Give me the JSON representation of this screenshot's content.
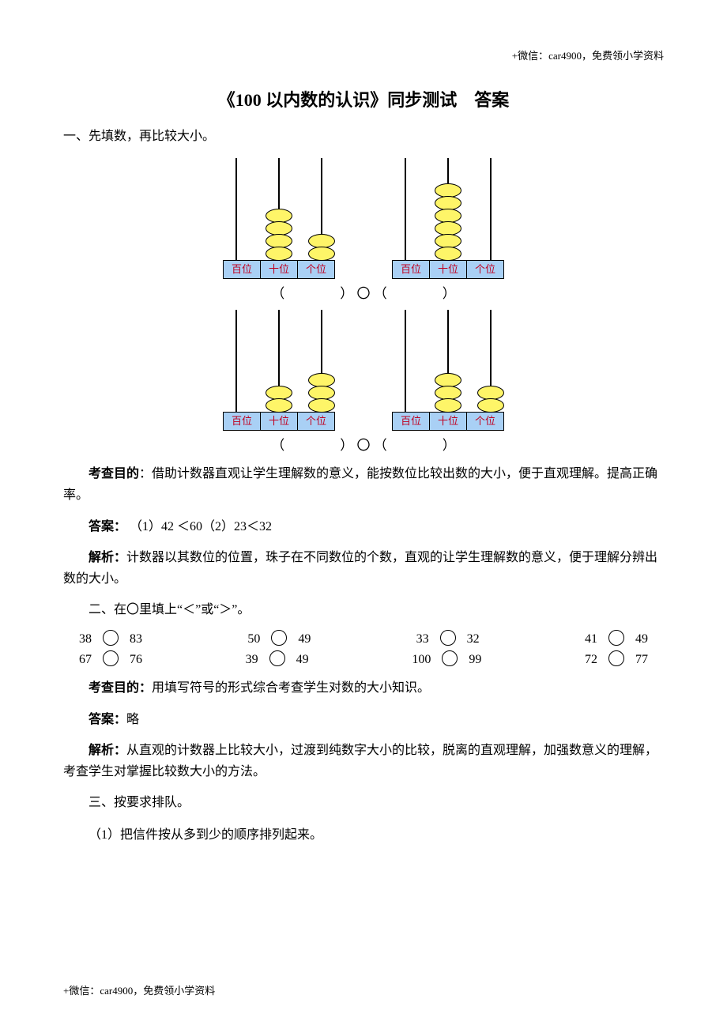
{
  "header_note": "+微信：car4900，免费领小学资料",
  "footer_note": "+微信：car4900，免费领小学资料",
  "title": "《100 以内数的认识》同步测试 答案",
  "q1": {
    "heading": "一、先填数，再比较大小。",
    "rod_labels": [
      "百位",
      "十位",
      "个位"
    ],
    "bead_fill": "#fef568",
    "bead_stroke": "#000000",
    "base_fill": "#a9d0f5",
    "label_color": "#c00020",
    "compare_line_row1": "（   ） 〇 （   ）",
    "compare_line_row2": "（   ） 〇 （   ）",
    "row1": {
      "left": {
        "beads": [
          0,
          4,
          2
        ]
      },
      "right": {
        "beads": [
          0,
          6,
          0
        ]
      }
    },
    "row2": {
      "left": {
        "beads": [
          0,
          2,
          3
        ]
      },
      "right": {
        "beads": [
          0,
          3,
          2
        ]
      }
    },
    "purpose_label": "考查目的",
    "purpose_text": "：借助计数器直观让学生理解数的意义，能按数位比较出数的大小，便于直观理解。提高正确率。",
    "answer_label": "答案：",
    "answer_text": "（1）42 ＜60（2）23＜32",
    "analysis_label": "解析：",
    "analysis_text": "计数器以其数位的位置，珠子在不同数位的个数，直观的让学生理解数的意义，便于理解分辨出数的大小。"
  },
  "q2": {
    "heading": "二、在〇里填上“＜”或“＞”。",
    "rows": [
      [
        [
          "38",
          "83"
        ],
        [
          "50",
          "49"
        ],
        [
          "33",
          "32"
        ],
        [
          "41",
          "49"
        ]
      ],
      [
        [
          "67",
          "76"
        ],
        [
          "39",
          "49"
        ],
        [
          "100",
          "99"
        ],
        [
          "72",
          "77"
        ]
      ]
    ],
    "purpose_label": "考查目的：",
    "purpose_text": "用填写符号的形式综合考查学生对数的大小知识。",
    "answer_label": "答案：",
    "answer_text": "略",
    "analysis_label": "解析：",
    "analysis_text": "从直观的计数器上比较大小，过渡到纯数字大小的比较，脱离的直观理解，加强数意义的理解，考查学生对掌握比较数大小的方法。"
  },
  "q3": {
    "heading": "三、按要求排队。",
    "sub1": "（1）把信件按从多到少的顺序排列起来。"
  }
}
